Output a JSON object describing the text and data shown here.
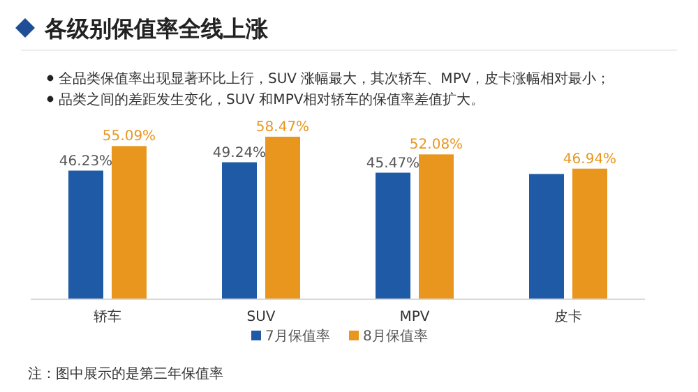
{
  "chart_data": {
    "type": "bar",
    "title": "各级别保值率全线上涨",
    "annotations": [
      "全品类保值率出现显著环比上行，SUV 涨幅最大，其次轿车、MPV，皮卡涨幅相对最小；",
      "品类之间的差距发生变化，SUV 和MPV相对轿车的保值率差值扩大。",
      "注：图中展示的是第三年保值率"
    ],
    "categories": [
      "轿车",
      "SUV",
      "MPV",
      "皮卡"
    ],
    "series": [
      {
        "name": "7月保值率",
        "color": "#1f5aa6",
        "values": [
          46.23,
          49.24,
          45.47,
          45.0
        ],
        "value_labels": [
          "46.23%",
          "49.24%",
          "45.47%",
          null
        ]
      },
      {
        "name": "8月保值率",
        "color": "#e8961e",
        "values": [
          55.09,
          58.47,
          52.08,
          46.94
        ],
        "value_labels": [
          "55.09%",
          "58.47%",
          "52.08%",
          "46.94%"
        ]
      }
    ],
    "legend": "bottom",
    "grid": false
  }
}
